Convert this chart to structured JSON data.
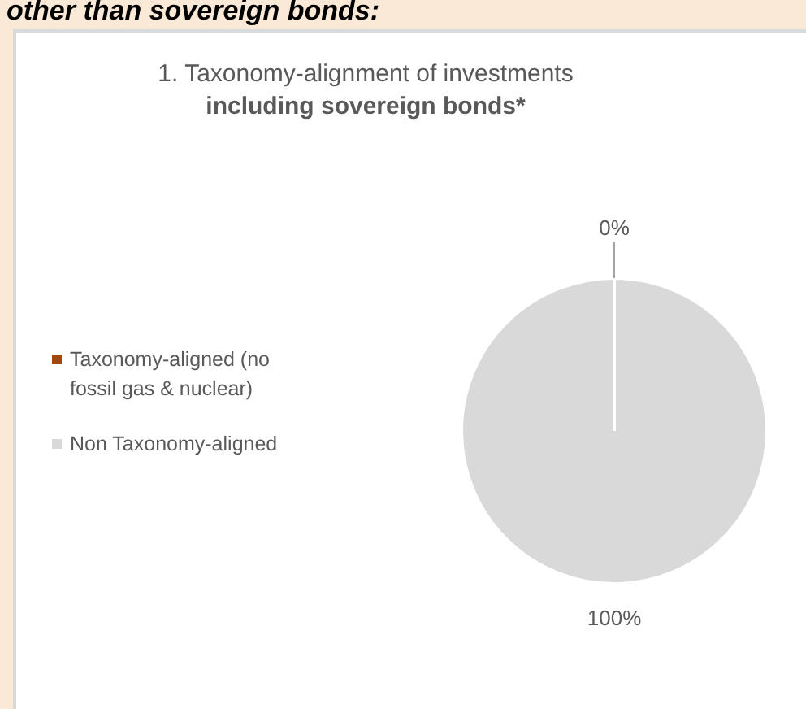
{
  "chart_data": {
    "type": "pie",
    "title": "1. Taxonomy-alignment of investments",
    "subtitle": "including sovereign bonds*",
    "annotations": [
      "other than sovereign bonds:"
    ],
    "categories": [
      "Taxonomy-aligned (no fossil gas & nuclear)",
      "Non Taxonomy-aligned"
    ],
    "values": [
      0,
      100
    ],
    "colors": [
      "#a0480e",
      "#d9d9d9"
    ],
    "value_labels": [
      "0%",
      "100%"
    ],
    "legend": "left"
  }
}
